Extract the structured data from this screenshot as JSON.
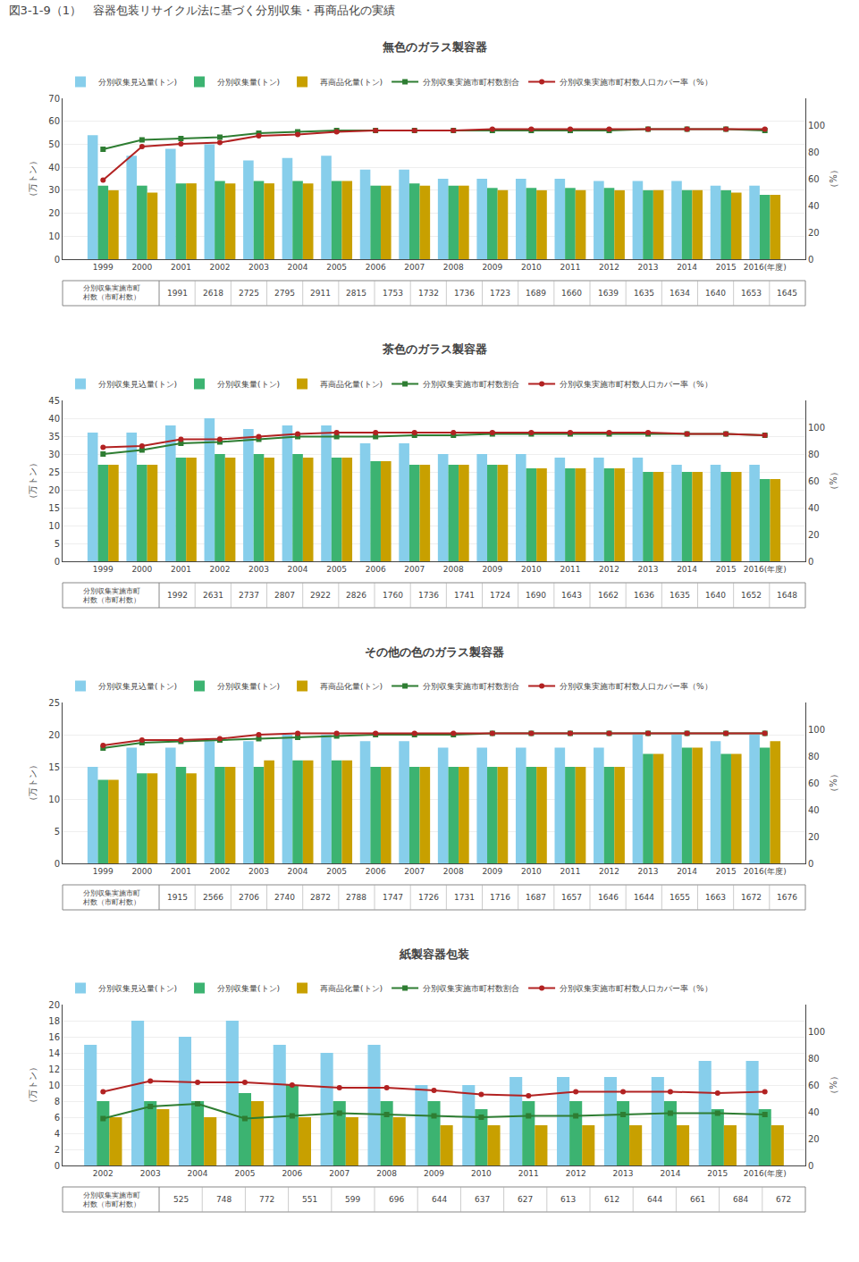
{
  "title": "図3-1-9（1）　容器包装リサイクル法に基づく分別収集・再商品化の実績",
  "chart_data": [
    {
      "type": "bar",
      "title": "無色のガラス製容器",
      "categories": [
        "1999",
        "2000",
        "2001",
        "2002",
        "2003",
        "2004",
        "2005",
        "2006",
        "2007",
        "2008",
        "2009",
        "2010",
        "2011",
        "2012",
        "2013",
        "2014",
        "2015",
        "2016(年度)"
      ],
      "series": [
        {
          "name": "分別収集見込量(トン)",
          "type": "bar",
          "color": "#87CEEB",
          "values": [
            54.0,
            45.0,
            48.0,
            50.0,
            43.0,
            44.0,
            45.0,
            39.0,
            39.0,
            35.0,
            35.0,
            35.0,
            35.0,
            34.0,
            34.0,
            34.0,
            32.0,
            32.0
          ]
        },
        {
          "name": "分別収集量(トン)",
          "type": "bar",
          "color": "#3CB371",
          "values": [
            32.0,
            32.0,
            33.0,
            34.0,
            34.0,
            34.0,
            34.0,
            32.0,
            33.0,
            32.0,
            31.0,
            31.0,
            31.0,
            31.0,
            30.0,
            30.0,
            30.0,
            28.0
          ]
        },
        {
          "name": "再商品化量(トン)",
          "type": "bar",
          "color": "#C8A000",
          "values": [
            30.0,
            29.0,
            33.0,
            33.0,
            33.0,
            33.0,
            34.0,
            32.0,
            32.0,
            32.0,
            30.0,
            30.0,
            30.0,
            30.0,
            30.0,
            30.0,
            29.0,
            28.0
          ]
        },
        {
          "name": "分別収集実施市町村数割合",
          "type": "line",
          "axis": "y2",
          "marker": "square",
          "color": "#2E7D32",
          "values": [
            82,
            89,
            90,
            91,
            94,
            95,
            96,
            96,
            96,
            96,
            96,
            96,
            96,
            96,
            97,
            97,
            97,
            96
          ]
        },
        {
          "name": "分別収集実施市町村数人口カバー率（%）",
          "type": "line",
          "axis": "y2",
          "marker": "circle",
          "color": "#B22222",
          "values": [
            59,
            84,
            86,
            87,
            92,
            93,
            95,
            96,
            96,
            96,
            97,
            97,
            97,
            97,
            97,
            97,
            97,
            97
          ]
        }
      ],
      "ylabel": "（万トン）",
      "y2label": "（%）",
      "ylim": [
        0,
        70
      ],
      "yticks": [
        0,
        10,
        20,
        30,
        40,
        50,
        60,
        70
      ],
      "y2lim": [
        0,
        120
      ],
      "y2ticks": [
        0,
        20,
        40,
        60,
        80,
        100
      ],
      "grid": true,
      "legend": "top",
      "table_row": {
        "label": "分別収集実施市町\n村数（市町村数）",
        "values": [
          1991,
          2618,
          2725,
          2795,
          2911,
          2815,
          1753,
          1732,
          1736,
          1723,
          1689,
          1660,
          1639,
          1635,
          1634,
          1640,
          1653,
          1645
        ]
      }
    },
    {
      "type": "bar",
      "title": "茶色のガラス製容器",
      "categories": [
        "1999",
        "2000",
        "2001",
        "2002",
        "2003",
        "2004",
        "2005",
        "2006",
        "2007",
        "2008",
        "2009",
        "2010",
        "2011",
        "2012",
        "2013",
        "2014",
        "2015",
        "2016(年度)"
      ],
      "series": [
        {
          "name": "分別収集見込量(トン)",
          "type": "bar",
          "color": "#87CEEB",
          "values": [
            36.0,
            36.0,
            38.0,
            40.0,
            37.0,
            38.0,
            38.0,
            33.0,
            33.0,
            30.0,
            30.0,
            30.0,
            29.0,
            29.0,
            29.0,
            27.0,
            27.0,
            27.0
          ]
        },
        {
          "name": "分別収集量(トン)",
          "type": "bar",
          "color": "#3CB371",
          "values": [
            27.0,
            27.0,
            29.0,
            30.0,
            30.0,
            30.0,
            29.0,
            28.0,
            27.0,
            27.0,
            27.0,
            26.0,
            26.0,
            26.0,
            25.0,
            25.0,
            25.0,
            23.0
          ]
        },
        {
          "name": "再商品化量(トン)",
          "type": "bar",
          "color": "#C8A000",
          "values": [
            27.0,
            27.0,
            29.0,
            29.0,
            29.0,
            29.0,
            29.0,
            28.0,
            27.0,
            27.0,
            27.0,
            26.0,
            26.0,
            26.0,
            25.0,
            25.0,
            25.0,
            23.0
          ]
        },
        {
          "name": "分別収集実施市町村数割合",
          "type": "line",
          "axis": "y2",
          "marker": "square",
          "color": "#2E7D32",
          "values": [
            80,
            83,
            88,
            89,
            91,
            93,
            93,
            93,
            94,
            94,
            95,
            95,
            95,
            95,
            95,
            95,
            95,
            94
          ]
        },
        {
          "name": "分別収集実施市町村数人口カバー率（%）",
          "type": "line",
          "axis": "y2",
          "marker": "circle",
          "color": "#B22222",
          "values": [
            85,
            86,
            91,
            91,
            93,
            95,
            96,
            96,
            96,
            96,
            96,
            96,
            96,
            96,
            96,
            95,
            95,
            94
          ]
        }
      ],
      "ylabel": "（万トン）",
      "y2label": "（%）",
      "ylim": [
        0,
        45
      ],
      "yticks": [
        0,
        5,
        10,
        15,
        20,
        25,
        30,
        35,
        40,
        45
      ],
      "y2lim": [
        0,
        120
      ],
      "y2ticks": [
        0,
        20,
        40,
        60,
        80,
        100
      ],
      "grid": true,
      "legend": "top",
      "table_row": {
        "label": "分別収集実施市町\n村数（市町村数）",
        "values": [
          1992,
          2631,
          2737,
          2807,
          2922,
          2826,
          1760,
          1736,
          1741,
          1724,
          1690,
          1643,
          1662,
          1636,
          1635,
          1640,
          1652,
          1648
        ]
      }
    },
    {
      "type": "bar",
      "title": "その他の色のガラス製容器",
      "categories": [
        "1999",
        "2000",
        "2001",
        "2002",
        "2003",
        "2004",
        "2005",
        "2006",
        "2007",
        "2008",
        "2009",
        "2010",
        "2011",
        "2012",
        "2013",
        "2014",
        "2015",
        "2016(年度)"
      ],
      "series": [
        {
          "name": "分別収集見込量(トン)",
          "type": "bar",
          "color": "#87CEEB",
          "values": [
            15.0,
            18.0,
            18.0,
            19.0,
            19.0,
            20.0,
            20.0,
            19.0,
            19.0,
            18.0,
            18.0,
            18.0,
            18.0,
            18.0,
            20.0,
            20.0,
            19.0,
            20.0
          ]
        },
        {
          "name": "分別収集量(トン)",
          "type": "bar",
          "color": "#3CB371",
          "values": [
            13.0,
            14.0,
            15.0,
            15.0,
            15.0,
            16.0,
            16.0,
            15.0,
            15.0,
            15.0,
            15.0,
            15.0,
            15.0,
            15.0,
            17.0,
            18.0,
            17.0,
            18.0
          ]
        },
        {
          "name": "再商品化量(トン)",
          "type": "bar",
          "color": "#C8A000",
          "values": [
            13.0,
            14.0,
            14.0,
            15.0,
            16.0,
            16.0,
            16.0,
            15.0,
            15.0,
            15.0,
            15.0,
            15.0,
            15.0,
            15.0,
            17.0,
            18.0,
            17.0,
            19.0
          ]
        },
        {
          "name": "分別収集実施市町村数割合",
          "type": "line",
          "axis": "y2",
          "marker": "square",
          "color": "#2E7D32",
          "values": [
            86,
            90,
            91,
            92,
            93,
            94,
            95,
            96,
            96,
            96,
            97,
            97,
            97,
            97,
            97,
            97,
            97,
            97
          ]
        },
        {
          "name": "分別収集実施市町村数人口カバー率（%）",
          "type": "line",
          "axis": "y2",
          "marker": "circle",
          "color": "#B22222",
          "values": [
            88,
            92,
            92,
            93,
            96,
            97,
            97,
            97,
            97,
            97,
            97,
            97,
            97,
            97,
            97,
            97,
            97,
            97
          ]
        }
      ],
      "ylabel": "（万トン）",
      "y2label": "（%）",
      "ylim": [
        0,
        25
      ],
      "yticks": [
        0,
        5,
        10,
        15,
        20,
        25
      ],
      "y2lim": [
        0,
        120
      ],
      "y2ticks": [
        0,
        20,
        40,
        60,
        80,
        100
      ],
      "grid": true,
      "legend": "top",
      "table_row": {
        "label": "分別収集実施市町\n村数（市町村数）",
        "values": [
          1915,
          2566,
          2706,
          2740,
          2872,
          2788,
          1747,
          1726,
          1731,
          1716,
          1687,
          1657,
          1646,
          1644,
          1655,
          1663,
          1672,
          1676
        ]
      }
    },
    {
      "type": "bar",
      "title": "紙製容器包装",
      "categories": [
        "2002",
        "2003",
        "2004",
        "2005",
        "2006",
        "2007",
        "2008",
        "2009",
        "2010",
        "2011",
        "2012",
        "2013",
        "2014",
        "2015",
        "2016(年度)"
      ],
      "series": [
        {
          "name": "分別収集見込量(トン)",
          "type": "bar",
          "color": "#87CEEB",
          "values": [
            15.0,
            18.0,
            16.0,
            18.0,
            15.0,
            14.0,
            15.0,
            10.0,
            10.0,
            11.0,
            11.0,
            11.0,
            11.0,
            13.0,
            13.0
          ]
        },
        {
          "name": "分別収集量(トン)",
          "type": "bar",
          "color": "#3CB371",
          "values": [
            8.0,
            8.0,
            8.0,
            9.0,
            10.0,
            8.0,
            8.0,
            8.0,
            7.0,
            8.0,
            8.0,
            8.0,
            8.0,
            7.0,
            7.0
          ]
        },
        {
          "name": "再商品化量(トン)",
          "type": "bar",
          "color": "#C8A000",
          "values": [
            6.0,
            7.0,
            6.0,
            8.0,
            6.0,
            6.0,
            6.0,
            5.0,
            5.0,
            5.0,
            5.0,
            5.0,
            5.0,
            5.0,
            5.0
          ]
        },
        {
          "name": "分別収集実施市町村数割合",
          "type": "line",
          "axis": "y2",
          "marker": "square",
          "color": "#2E7D32",
          "values": [
            35,
            44,
            46,
            35,
            37,
            39,
            38,
            37,
            36,
            37,
            37,
            38,
            39,
            39,
            38
          ]
        },
        {
          "name": "分別収集実施市町村数人口カバー率（%）",
          "type": "line",
          "axis": "y2",
          "marker": "circle",
          "color": "#B22222",
          "values": [
            55,
            63,
            62,
            62,
            60,
            58,
            58,
            56,
            53,
            52,
            55,
            55,
            55,
            54,
            55
          ]
        }
      ],
      "ylabel": "（万トン）",
      "y2label": "（%）",
      "ylim": [
        0,
        20
      ],
      "yticks": [
        0,
        2,
        4,
        6,
        8,
        10,
        12,
        14,
        16,
        18,
        20
      ],
      "y2lim": [
        0,
        120
      ],
      "y2ticks": [
        0,
        20,
        40,
        60,
        80,
        100
      ],
      "grid": true,
      "legend": "top",
      "table_row": {
        "label": "分別収集実施市町\n村数（市町村数）",
        "values": [
          525,
          748,
          772,
          551,
          599,
          696,
          644,
          637,
          627,
          613,
          612,
          644,
          661,
          684,
          672
        ]
      }
    }
  ]
}
